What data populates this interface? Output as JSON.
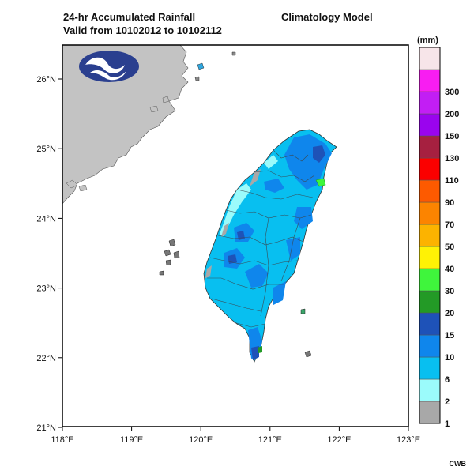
{
  "header": {
    "title_line1": "24-hr Accumulated Rainfall",
    "title_line2": "Valid from 10102012 to 10102112",
    "model": "Climatology Model"
  },
  "map": {
    "x_ticks": [
      "118°E",
      "119°E",
      "120°E",
      "121°E",
      "122°E",
      "123°E"
    ],
    "y_ticks": [
      "26°N",
      "25°N",
      "24°N",
      "23°N",
      "22°N",
      "21°N"
    ],
    "land_color": "#c3c3c3",
    "ocean_color": "#ffffff",
    "logo_icon": "cwb-logo-icon"
  },
  "legend": {
    "unit": "(mm)",
    "levels": [
      {
        "label": "1",
        "color": "#a8a8a8"
      },
      {
        "label": "2",
        "color": "#9bfbfb"
      },
      {
        "label": "6",
        "color": "#08bff0"
      },
      {
        "label": "10",
        "color": "#0f86ec"
      },
      {
        "label": "15",
        "color": "#1e52b8"
      },
      {
        "label": "20",
        "color": "#239a26"
      },
      {
        "label": "30",
        "color": "#3ff53c"
      },
      {
        "label": "40",
        "color": "#fff205"
      },
      {
        "label": "50",
        "color": "#fcb300"
      },
      {
        "label": "70",
        "color": "#fc8400"
      },
      {
        "label": "90",
        "color": "#fd5a00"
      },
      {
        "label": "110",
        "color": "#fb0000"
      },
      {
        "label": "130",
        "color": "#a62040"
      },
      {
        "label": "150",
        "color": "#9a04ee"
      },
      {
        "label": "200",
        "color": "#c21ef4"
      },
      {
        "label": "300",
        "color": "#f81df2"
      },
      {
        "label": "",
        "color": "#f7e5e9"
      }
    ]
  },
  "credit": "CWB"
}
